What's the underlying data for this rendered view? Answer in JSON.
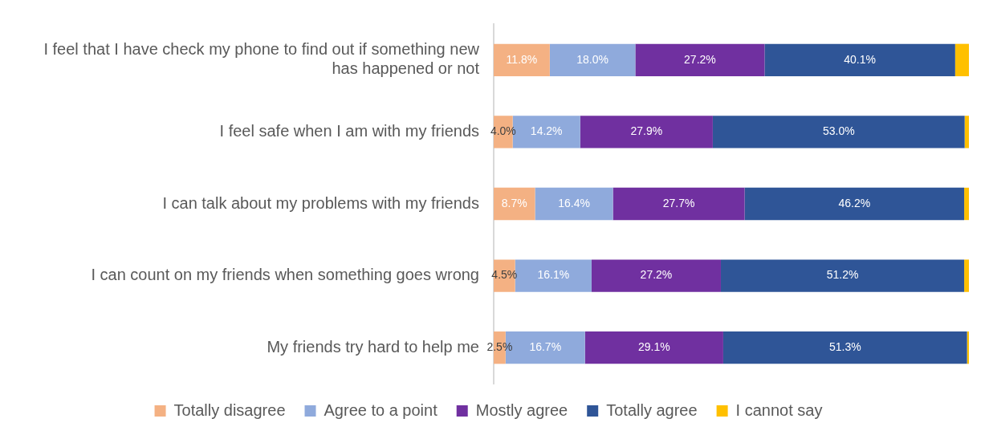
{
  "chart_data": {
    "type": "bar",
    "orientation": "horizontal",
    "stacked": true,
    "categories": [
      "I feel that I have check my phone to find out if something new has happened or not",
      "I feel safe when I am with my friends",
      "I can talk about my problems with my friends",
      "I can count on my friends when something goes wrong",
      "My friends try hard to help me"
    ],
    "xlim": [
      0,
      100
    ],
    "tick_labels": "y",
    "grid": false,
    "legend": "bottom",
    "series": [
      {
        "name": "Totally disagree",
        "color": "#f4b183",
        "values": [
          11.8,
          4.0,
          8.7,
          4.5,
          2.5
        ],
        "value_labels": [
          "11.8%",
          "4.0%",
          "8.7%",
          "4.5%",
          "2.5%"
        ]
      },
      {
        "name": "Agree to a point",
        "color": "#8faadc",
        "values": [
          18.0,
          14.2,
          16.4,
          16.1,
          16.7
        ],
        "value_labels": [
          "18.0%",
          "14.2%",
          "16.4%",
          "16.1%",
          "16.7%"
        ]
      },
      {
        "name": "Mostly agree",
        "color": "#7030a0",
        "values": [
          27.2,
          27.9,
          27.7,
          27.2,
          29.1
        ],
        "value_labels": [
          "27.2%",
          "27.9%",
          "27.7%",
          "27.2%",
          "29.1%"
        ]
      },
      {
        "name": "Totally agree",
        "color": "#2f5597",
        "values": [
          40.1,
          53.0,
          46.2,
          51.2,
          51.3
        ],
        "value_labels": [
          "40.1%",
          "53.0%",
          "46.2%",
          "51.2%",
          "51.3%"
        ]
      },
      {
        "name": "I cannot say",
        "color": "#ffc000",
        "values": [
          2.9,
          0.9,
          1.0,
          1.0,
          0.4
        ]
      }
    ]
  }
}
